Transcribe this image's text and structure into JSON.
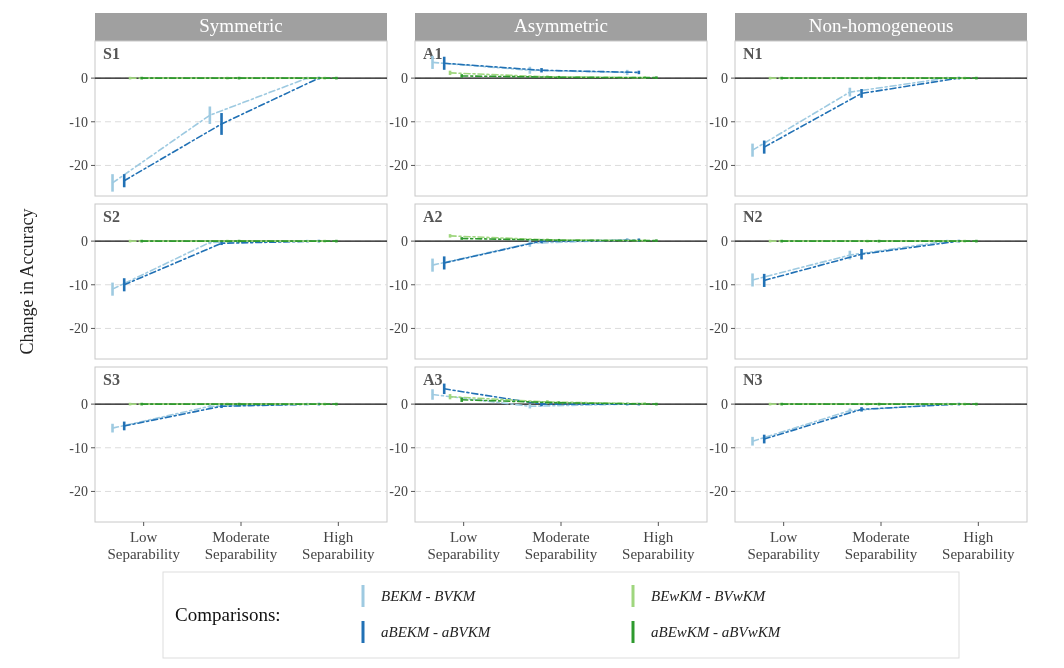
{
  "chart_data": [
    {
      "type": "line",
      "title": "Symmetric",
      "subtitle": "S1",
      "legend": "bottom",
      "legend_title": "Comparisons:",
      "categories": [
        null,
        null,
        null
      ],
      "ylim": [
        -27,
        8.5
      ],
      "yticks": [
        -20,
        -10,
        0
      ],
      "grid": "y",
      "tick_labels": "y",
      "line_style": "dashed",
      "ref_lines": [
        {
          "axis": "y",
          "value": 0
        }
      ],
      "series": [
        {
          "name": "BEKM - BVKM",
          "color": "#9ecae1",
          "values": [
            -24,
            -8.5,
            0
          ],
          "errors": [
            2,
            2,
            0.3
          ]
        },
        {
          "name": "aBEKM - aBVKM",
          "color": "#2171b5",
          "values": [
            -23.5,
            -10.5,
            0
          ],
          "errors": [
            1.5,
            2.5,
            0.3
          ]
        },
        {
          "name": "BEwKM - BVwKM",
          "color": "#9fd67e",
          "values": [
            0,
            0,
            0
          ],
          "errors": [
            0.3,
            0.3,
            0.3
          ]
        },
        {
          "name": "aBEwKM - aBVwKM",
          "color": "#2e9a2e",
          "values": [
            0,
            0,
            0
          ],
          "errors": [
            0.3,
            0.3,
            0.3
          ]
        }
      ]
    },
    {
      "type": "line",
      "title": "Asymmetric",
      "subtitle": "A1",
      "categories": [
        null,
        null,
        null
      ],
      "ylim": [
        -27,
        8.5
      ],
      "yticks": [
        -20,
        -10,
        0
      ],
      "grid": "y",
      "tick_labels": "y",
      "line_style": "dashed",
      "ref_lines": [
        {
          "axis": "y",
          "value": 0
        }
      ],
      "series": [
        {
          "color": "#9ecae1",
          "values": [
            3.6,
            1.8,
            1.3
          ],
          "errors": [
            1.5,
            0.8,
            0.6
          ]
        },
        {
          "color": "#2171b5",
          "values": [
            3.4,
            1.8,
            1.3
          ],
          "errors": [
            1.5,
            0.5,
            0.4
          ]
        },
        {
          "color": "#9fd67e",
          "values": [
            1.2,
            0.3,
            0.1
          ],
          "errors": [
            0.5,
            0.3,
            0.3
          ]
        },
        {
          "color": "#2e9a2e",
          "values": [
            0.5,
            0.2,
            0.1
          ],
          "errors": [
            0.4,
            0.3,
            0.3
          ]
        }
      ]
    },
    {
      "type": "line",
      "title": "Non-homogeneous",
      "subtitle": "N1",
      "categories": [
        null,
        null,
        null
      ],
      "ylim": [
        -27,
        8.5
      ],
      "yticks": [
        -20,
        -10,
        0
      ],
      "grid": "y",
      "tick_labels": "y",
      "line_style": "dashed",
      "ref_lines": [
        {
          "axis": "y",
          "value": 0
        }
      ],
      "series": [
        {
          "color": "#9ecae1",
          "values": [
            -16.5,
            -3.2,
            0
          ],
          "errors": [
            1.5,
            1,
            0.3
          ]
        },
        {
          "color": "#2171b5",
          "values": [
            -15.8,
            -3.5,
            0
          ],
          "errors": [
            1.5,
            1,
            0.3
          ]
        },
        {
          "color": "#9fd67e",
          "values": [
            0,
            0,
            0
          ],
          "errors": [
            0.3,
            0.3,
            0.3
          ]
        },
        {
          "color": "#2e9a2e",
          "values": [
            0,
            0,
            0
          ],
          "errors": [
            0.3,
            0.3,
            0.3
          ]
        }
      ]
    },
    {
      "type": "line",
      "subtitle": "S2",
      "ylabel": "Change in Accuracy",
      "categories": [
        null,
        null,
        null
      ],
      "ylim": [
        -27,
        8.5
      ],
      "yticks": [
        -20,
        -10,
        0
      ],
      "grid": "y",
      "tick_labels": "y",
      "line_style": "dashed",
      "ref_lines": [
        {
          "axis": "y",
          "value": 0
        }
      ],
      "series": [
        {
          "color": "#9ecae1",
          "values": [
            -11,
            -0.3,
            0
          ],
          "errors": [
            1.5,
            0.4,
            0.3
          ]
        },
        {
          "color": "#2171b5",
          "values": [
            -10,
            -0.5,
            0
          ],
          "errors": [
            1.5,
            0.4,
            0.3
          ]
        },
        {
          "color": "#9fd67e",
          "values": [
            0,
            0,
            0
          ],
          "errors": [
            0.3,
            0.3,
            0.3
          ]
        },
        {
          "color": "#2e9a2e",
          "values": [
            0,
            0,
            0
          ],
          "errors": [
            0.3,
            0.3,
            0.3
          ]
        }
      ]
    },
    {
      "type": "line",
      "subtitle": "A2",
      "categories": [
        null,
        null,
        null
      ],
      "ylim": [
        -27,
        8.5
      ],
      "yticks": [
        -20,
        -10,
        0
      ],
      "grid": "y",
      "tick_labels": "y",
      "line_style": "dashed",
      "ref_lines": [
        {
          "axis": "y",
          "value": 0
        }
      ],
      "series": [
        {
          "color": "#9ecae1",
          "values": [
            -5.5,
            -0.5,
            0.3
          ],
          "errors": [
            1.5,
            0.8,
            0.4
          ]
        },
        {
          "color": "#2171b5",
          "values": [
            -5,
            0,
            0.2
          ],
          "errors": [
            1.5,
            0.5,
            0.4
          ]
        },
        {
          "color": "#9fd67e",
          "values": [
            1.2,
            0.3,
            0.1
          ],
          "errors": [
            0.4,
            0.3,
            0.3
          ]
        },
        {
          "color": "#2e9a2e",
          "values": [
            0.6,
            0.2,
            0.1
          ],
          "errors": [
            0.3,
            0.3,
            0.3
          ]
        }
      ]
    },
    {
      "type": "line",
      "subtitle": "N2",
      "categories": [
        null,
        null,
        null
      ],
      "ylim": [
        -27,
        8.5
      ],
      "yticks": [
        -20,
        -10,
        0
      ],
      "grid": "y",
      "tick_labels": "y",
      "line_style": "dashed",
      "ref_lines": [
        {
          "axis": "y",
          "value": 0
        }
      ],
      "series": [
        {
          "color": "#9ecae1",
          "values": [
            -8.9,
            -3.2,
            0
          ],
          "errors": [
            1.5,
            1,
            0.3
          ]
        },
        {
          "color": "#2171b5",
          "values": [
            -9,
            -3,
            0
          ],
          "errors": [
            1.5,
            1.2,
            0.3
          ]
        },
        {
          "color": "#9fd67e",
          "values": [
            0,
            0,
            0
          ],
          "errors": [
            0.3,
            0.3,
            0.3
          ]
        },
        {
          "color": "#2e9a2e",
          "values": [
            0,
            0,
            0
          ],
          "errors": [
            0.3,
            0.3,
            0.3
          ]
        }
      ]
    },
    {
      "type": "line",
      "subtitle": "S3",
      "categories": [
        "Low Separability",
        "Moderate Separability",
        "High Separability"
      ],
      "ylim": [
        -27,
        8.5
      ],
      "yticks": [
        -20,
        -10,
        0
      ],
      "grid": "y",
      "line_style": "dashed",
      "ref_lines": [
        {
          "axis": "y",
          "value": 0
        }
      ],
      "series": [
        {
          "color": "#9ecae1",
          "values": [
            -5.5,
            -0.5,
            0
          ],
          "errors": [
            1,
            0.4,
            0.3
          ]
        },
        {
          "color": "#2171b5",
          "values": [
            -5,
            -0.5,
            0
          ],
          "errors": [
            1,
            0.4,
            0.3
          ]
        },
        {
          "color": "#9fd67e",
          "values": [
            0,
            0,
            0
          ],
          "errors": [
            0.3,
            0.3,
            0.3
          ]
        },
        {
          "color": "#2e9a2e",
          "values": [
            0,
            0,
            0
          ],
          "errors": [
            0.3,
            0.3,
            0.3
          ]
        }
      ]
    },
    {
      "type": "line",
      "subtitle": "A3",
      "categories": [
        "Low Separability",
        "Moderate Separability",
        "High Separability"
      ],
      "ylim": [
        -27,
        8.5
      ],
      "yticks": [
        -20,
        -10,
        0
      ],
      "grid": "y",
      "line_style": "dashed",
      "ref_lines": [
        {
          "axis": "y",
          "value": 0
        }
      ],
      "series": [
        {
          "color": "#9ecae1",
          "values": [
            2.2,
            -0.5,
            0
          ],
          "errors": [
            1.2,
            0.5,
            0.4
          ]
        },
        {
          "color": "#2171b5",
          "values": [
            3.5,
            0,
            0
          ],
          "errors": [
            1.2,
            0.5,
            0.3
          ]
        },
        {
          "color": "#9fd67e",
          "values": [
            1.7,
            0.5,
            0.1
          ],
          "errors": [
            0.6,
            0.4,
            0.3
          ]
        },
        {
          "color": "#2e9a2e",
          "values": [
            1,
            0.3,
            0
          ],
          "errors": [
            0.5,
            0.3,
            0.3
          ]
        }
      ]
    },
    {
      "type": "line",
      "subtitle": "N3",
      "categories": [
        "Low Separability",
        "Moderate Separability",
        "High Separability"
      ],
      "ylim": [
        -27,
        8.5
      ],
      "yticks": [
        -20,
        -10,
        0
      ],
      "grid": "y",
      "line_style": "dashed",
      "ref_lines": [
        {
          "axis": "y",
          "value": 0
        }
      ],
      "series": [
        {
          "color": "#9ecae1",
          "values": [
            -8.5,
            -1.5,
            0
          ],
          "errors": [
            1,
            0.5,
            0.3
          ]
        },
        {
          "color": "#2171b5",
          "values": [
            -8,
            -1.2,
            0
          ],
          "errors": [
            1,
            0.5,
            0.3
          ]
        },
        {
          "color": "#9fd67e",
          "values": [
            0,
            0,
            0
          ],
          "errors": [
            0.3,
            0.3,
            0.3
          ]
        },
        {
          "color": "#2e9a2e",
          "values": [
            0,
            0,
            0
          ],
          "errors": [
            0.3,
            0.3,
            0.3
          ]
        }
      ]
    }
  ]
}
